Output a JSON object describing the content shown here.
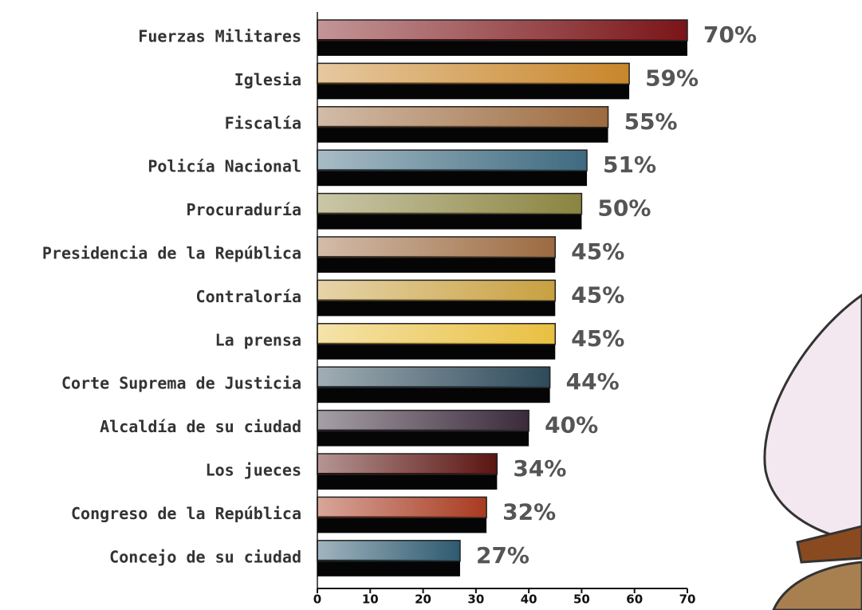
{
  "chart_data": {
    "type": "hbar",
    "categories": [
      "Fuerzas Militares",
      "Iglesia",
      "Fiscalía",
      "Policía Nacional",
      "Procuraduría",
      "Presidencia de la República",
      "Contraloría",
      "La prensa",
      "Corte Suprema de Justicia",
      "Alcaldía de su ciudad",
      "Los jueces",
      "Congreso de la República",
      "Concejo de su ciudad"
    ],
    "values": [
      70,
      59,
      55,
      51,
      50,
      45,
      45,
      45,
      44,
      40,
      34,
      32,
      27
    ],
    "value_labels": [
      "70%",
      "59%",
      "55%",
      "51%",
      "50%",
      "45%",
      "45%",
      "45%",
      "44%",
      "40%",
      "34%",
      "32%",
      "27%"
    ],
    "colors": [
      "#7a1418",
      "#c8862a",
      "#9c6a3e",
      "#3e6a80",
      "#8a8440",
      "#9c6a40",
      "#c8a040",
      "#e8c040",
      "#2e4a5a",
      "#3a2a3a",
      "#5a1410",
      "#a83a20",
      "#2e5a70"
    ],
    "xlim": [
      0,
      70
    ],
    "xticks": [
      0,
      10,
      20,
      30,
      40,
      50,
      60,
      70
    ]
  }
}
